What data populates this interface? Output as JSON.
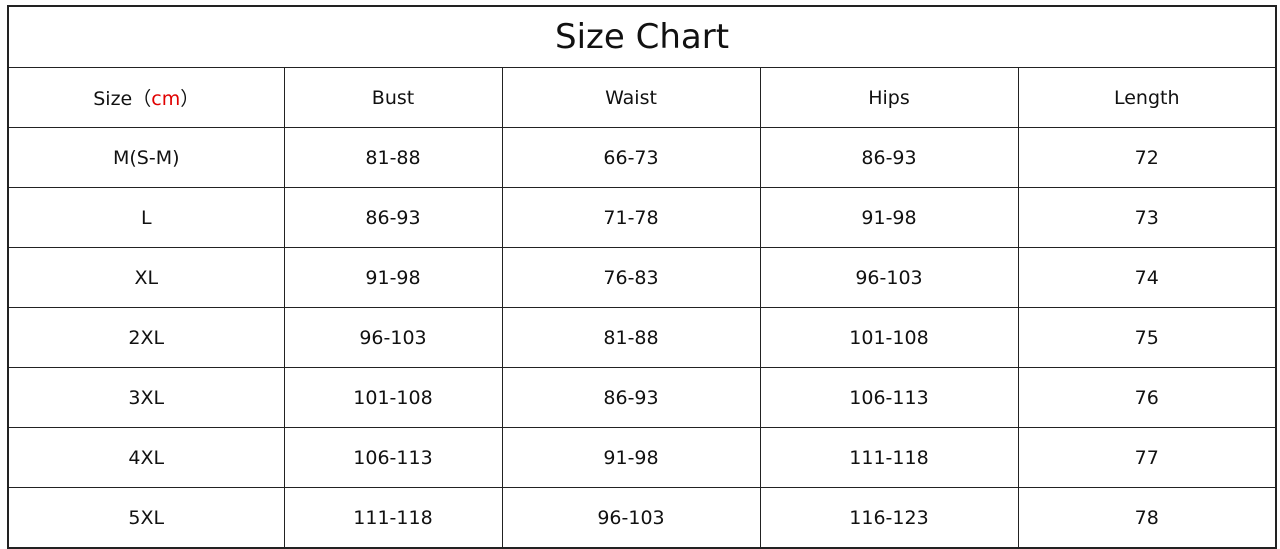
{
  "title": "Size Chart",
  "headers": {
    "size_label": "Size",
    "size_open": "（",
    "size_unit": "cm",
    "size_close": "）",
    "columns": [
      "Bust",
      "Waist",
      "Hips",
      "Length"
    ]
  },
  "unit_color": "#e00000",
  "rows": [
    [
      "M(S-M)",
      "81-88",
      "66-73",
      "86-93",
      "72"
    ],
    [
      "L",
      "86-93",
      "71-78",
      "91-98",
      "73"
    ],
    [
      "XL",
      "91-98",
      "76-83",
      "96-103",
      "74"
    ],
    [
      "2XL",
      "96-103",
      "81-88",
      "101-108",
      "75"
    ],
    [
      "3XL",
      "101-108",
      "86-93",
      "106-113",
      "76"
    ],
    [
      "4XL",
      "106-113",
      "91-98",
      "111-118",
      "77"
    ],
    [
      "5XL",
      "111-118",
      "96-103",
      "116-123",
      "78"
    ]
  ]
}
